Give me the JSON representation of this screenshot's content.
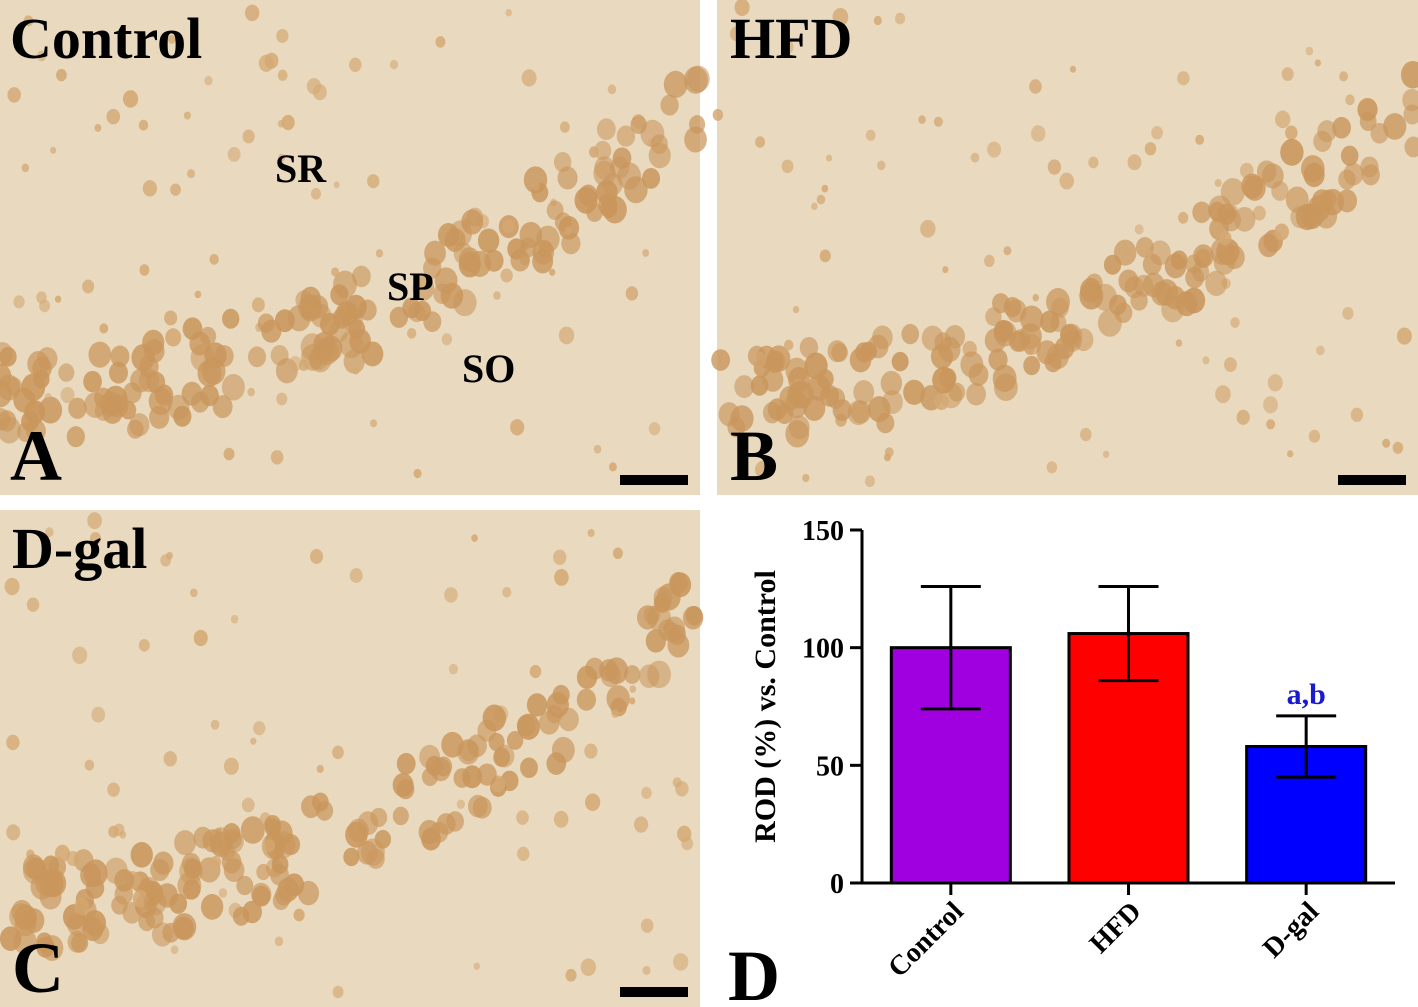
{
  "panels": [
    {
      "title": "Control",
      "letter": "A",
      "regions": [
        "SR",
        "SP",
        "SO"
      ]
    },
    {
      "title": "HFD",
      "letter": "B"
    },
    {
      "title": "D-gal",
      "letter": "C"
    }
  ],
  "chart_data": {
    "type": "bar",
    "letter": "D",
    "ylabel": "ROD (%) vs. Control",
    "categories": [
      "Control",
      "HFD",
      "D-gal"
    ],
    "values": [
      100,
      106,
      58
    ],
    "errors": [
      26,
      20,
      13
    ],
    "colors": [
      "#a000e0",
      "#ff0000",
      "#0000ff"
    ],
    "annotations": [
      null,
      null,
      "a,b"
    ],
    "annotation_color": "#1a1ad0",
    "ylim": [
      0,
      150
    ],
    "yticks": [
      0,
      50,
      100,
      150
    ]
  }
}
